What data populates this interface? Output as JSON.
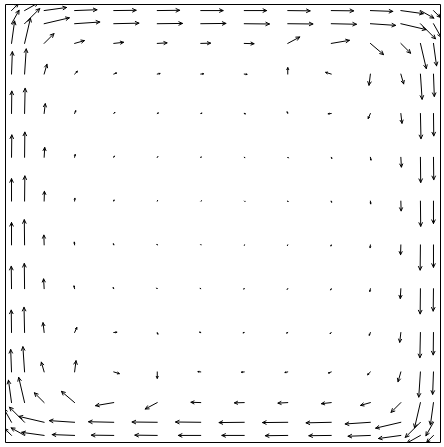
{
  "chart_data": {
    "type": "quiver",
    "color": "#000000",
    "xlim": [
      0,
      1
    ],
    "ylim": [
      0,
      1
    ],
    "tick_labels": false,
    "x": [
      0.015,
      0.045,
      0.09,
      0.16,
      0.25,
      0.35,
      0.45,
      0.55,
      0.65,
      0.75,
      0.84,
      0.91,
      0.955,
      0.985
    ],
    "y": [
      0.015,
      0.045,
      0.09,
      0.16,
      0.25,
      0.35,
      0.45,
      0.55,
      0.65,
      0.75,
      0.84,
      0.91,
      0.955,
      0.985
    ],
    "u": [
      [
        -0.24,
        -0.48,
        -0.8,
        -0.8,
        -0.8,
        -0.8,
        -0.8,
        -0.8,
        -0.8,
        -0.8,
        -0.8,
        -0.8,
        -0.48,
        -0.24
      ],
      [
        -0.27,
        -0.54,
        -0.9,
        -0.9,
        -0.9,
        -0.9,
        -0.9,
        -0.9,
        -0.9,
        -0.9,
        -0.9,
        -0.9,
        -0.54,
        -0.27
      ],
      [
        -0.11,
        -0.21,
        -0.35,
        -0.47,
        -0.65,
        -0.43,
        -0.35,
        -0.35,
        -0.35,
        -0.35,
        -0.35,
        -0.35,
        -0.21,
        -0.11
      ],
      [
        -0.03,
        -0.06,
        -0.1,
        0.05,
        0.2,
        0,
        -0.1,
        -0.1,
        -0.1,
        -0.1,
        -0.1,
        -0.1,
        -0.06,
        -0.03
      ],
      [
        -0.01,
        -0.02,
        -0.04,
        0.08,
        0.11,
        0.02,
        -0.04,
        -0.04,
        -0.04,
        -0.04,
        -0.04,
        -0.04,
        -0.02,
        -0.01
      ],
      [
        -0.01,
        -0.01,
        -0.02,
        -0.02,
        -0.02,
        -0.02,
        -0.02,
        -0.02,
        -0.02,
        -0.02,
        -0.02,
        -0.02,
        -0.01,
        -0.01
      ],
      [
        0,
        -0.01,
        -0.01,
        -0.01,
        -0.01,
        -0.01,
        -0.01,
        -0.01,
        -0.01,
        -0.01,
        -0.01,
        -0.01,
        -0.01,
        0
      ],
      [
        0,
        0.01,
        0.01,
        0.01,
        0.01,
        0.01,
        0.01,
        0.01,
        0.01,
        0.01,
        0.01,
        0.01,
        0.01,
        0
      ],
      [
        0.01,
        0.01,
        0.02,
        0.02,
        0.02,
        0.02,
        0.02,
        0.02,
        0.02,
        0.02,
        0.02,
        0.02,
        0.01,
        0.01
      ],
      [
        0.01,
        0.02,
        0.04,
        0.04,
        0.04,
        0.04,
        0.04,
        0.04,
        -0.02,
        -0.11,
        -0.08,
        0.04,
        0.02,
        0.01
      ],
      [
        0.03,
        0.06,
        0.1,
        0.1,
        0.1,
        0.1,
        0.1,
        0.1,
        0,
        -0.2,
        -0.05,
        0.1,
        0.06,
        0.03
      ],
      [
        0.11,
        0.21,
        0.35,
        0.35,
        0.35,
        0.35,
        0.35,
        0.35,
        0.43,
        0.65,
        0.47,
        0.35,
        0.21,
        0.11
      ],
      [
        0.27,
        0.54,
        0.9,
        0.9,
        0.9,
        0.9,
        0.9,
        0.9,
        0.9,
        0.9,
        0.9,
        0.9,
        0.54,
        0.27
      ],
      [
        0.24,
        0.48,
        0.8,
        0.8,
        0.8,
        0.8,
        0.8,
        0.8,
        0.8,
        0.8,
        0.8,
        0.8,
        0.48,
        0.24
      ]
    ],
    "v": [
      [
        0.24,
        0.27,
        0.11,
        0.03,
        0.01,
        0.01,
        0,
        0,
        -0.01,
        -0.01,
        -0.03,
        -0.11,
        -0.27,
        -0.24
      ],
      [
        0.48,
        0.54,
        0.21,
        0.06,
        0.02,
        0.01,
        0.01,
        -0.01,
        -0.01,
        -0.02,
        -0.06,
        -0.21,
        -0.54,
        -0.48
      ],
      [
        0.8,
        0.9,
        0.35,
        0.4,
        -0.11,
        -0.23,
        0.01,
        -0.01,
        -0.02,
        -0.04,
        -0.1,
        -0.35,
        -0.9,
        -0.8
      ],
      [
        0.8,
        0.9,
        0.35,
        0.4,
        -0.06,
        -0.23,
        0.01,
        -0.01,
        -0.02,
        -0.04,
        -0.1,
        -0.35,
        -0.9,
        -0.8
      ],
      [
        0.8,
        0.9,
        0.35,
        0.18,
        0.01,
        -0.06,
        0.01,
        -0.01,
        -0.02,
        -0.04,
        -0.1,
        -0.35,
        -0.9,
        -0.8
      ],
      [
        0.8,
        0.9,
        0.35,
        0.1,
        0.04,
        0.02,
        0.01,
        -0.01,
        -0.02,
        -0.04,
        -0.1,
        -0.35,
        -0.9,
        -0.8
      ],
      [
        0.8,
        0.9,
        0.35,
        0.1,
        0.04,
        0.02,
        0.01,
        -0.01,
        -0.02,
        -0.04,
        -0.1,
        -0.35,
        -0.9,
        -0.8
      ],
      [
        0.8,
        0.9,
        0.35,
        0.1,
        0.04,
        0.02,
        0.01,
        -0.01,
        -0.02,
        -0.04,
        -0.1,
        -0.35,
        -0.9,
        -0.8
      ],
      [
        0.8,
        0.9,
        0.35,
        0.1,
        0.04,
        0.02,
        0.01,
        -0.01,
        -0.02,
        -0.04,
        -0.1,
        -0.35,
        -0.9,
        -0.8
      ],
      [
        0.8,
        0.9,
        0.35,
        0.1,
        0.04,
        0.02,
        0.01,
        -0.01,
        0.06,
        -0.01,
        -0.18,
        -0.35,
        -0.9,
        -0.8
      ],
      [
        0.8,
        0.9,
        0.35,
        0.1,
        0.04,
        0.02,
        0.01,
        -0.01,
        0.23,
        0.06,
        -0.4,
        -0.35,
        -0.9,
        -0.8
      ],
      [
        0.8,
        0.9,
        0.35,
        0.1,
        0.04,
        0.02,
        0.01,
        -0.01,
        0.23,
        0.11,
        -0.4,
        -0.35,
        -0.9,
        -0.8
      ],
      [
        0.48,
        0.54,
        0.21,
        0.06,
        0.02,
        0.01,
        0.01,
        -0.01,
        -0.01,
        -0.02,
        -0.06,
        -0.21,
        -0.54,
        -0.48
      ],
      [
        0.24,
        0.27,
        0.11,
        0.03,
        0.01,
        0.01,
        0,
        0,
        -0.01,
        -0.01,
        -0.03,
        -0.11,
        -0.27,
        -0.24
      ]
    ]
  }
}
